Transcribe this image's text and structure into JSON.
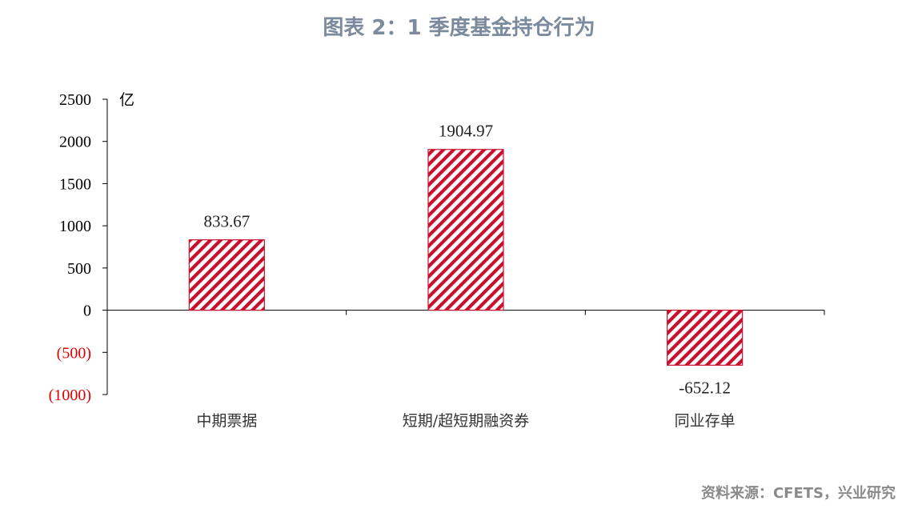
{
  "title": "图表 2：1 季度基金持仓行为",
  "source": "资料来源：CFETS，兴业研究",
  "colors": {
    "bar": "#c8102e",
    "negative_tick": "#e00000",
    "axis": "#000000",
    "title": "#7b8a9c",
    "source": "#8a8a8a"
  },
  "chart_data": {
    "type": "bar",
    "title": "图表 2：1 季度基金持仓行为",
    "ylabel": "亿",
    "xlabel": "",
    "categories": [
      "中期票据",
      "短期/超短期融资券",
      "同业存单"
    ],
    "values": [
      833.67,
      1904.97,
      -652.12
    ],
    "data_labels": [
      "833.67",
      "1904.97",
      "-652.12"
    ],
    "ylim": [
      -1000,
      2500
    ],
    "y_ticks": [
      2500,
      2000,
      1500,
      1000,
      500,
      0,
      -500,
      -1000
    ],
    "y_tick_labels": [
      "2500",
      "2000",
      "1500",
      "1000",
      "500",
      "0",
      "(500)",
      "(1000)"
    ],
    "bar_fill": "diagonal-hatch",
    "grid": false,
    "legend": "none"
  }
}
